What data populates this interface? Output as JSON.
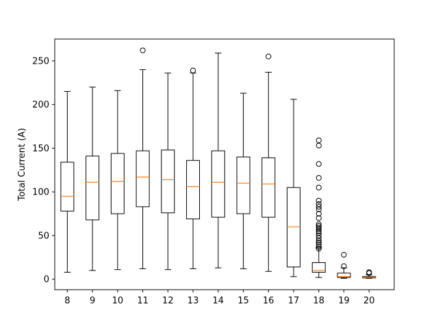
{
  "chart_data": {
    "type": "box",
    "title": "",
    "xlabel": "",
    "ylabel": "Total Current (A)",
    "ylim": [
      -12,
      275
    ],
    "yticks": [
      0,
      50,
      100,
      150,
      200,
      250
    ],
    "grid": false,
    "categories": [
      "8",
      "9",
      "10",
      "11",
      "12",
      "13",
      "14",
      "15",
      "16",
      "17",
      "18",
      "19",
      "20"
    ],
    "boxes": [
      {
        "label": "8",
        "whisker_low": 8,
        "q1": 78,
        "median": 95,
        "q3": 134,
        "whisker_high": 215,
        "outliers": []
      },
      {
        "label": "9",
        "whisker_low": 10,
        "q1": 68,
        "median": 111,
        "q3": 141,
        "whisker_high": 220,
        "outliers": []
      },
      {
        "label": "10",
        "whisker_low": 11,
        "q1": 75,
        "median": 112,
        "q3": 144,
        "whisker_high": 216,
        "outliers": []
      },
      {
        "label": "11",
        "whisker_low": 12,
        "q1": 83,
        "median": 117,
        "q3": 147,
        "whisker_high": 240,
        "outliers": [
          262
        ]
      },
      {
        "label": "12",
        "whisker_low": 11,
        "q1": 76,
        "median": 114,
        "q3": 148,
        "whisker_high": 236,
        "outliers": []
      },
      {
        "label": "13",
        "whisker_low": 12,
        "q1": 69,
        "median": 106,
        "q3": 136,
        "whisker_high": 236,
        "outliers": [
          239
        ]
      },
      {
        "label": "14",
        "whisker_low": 13,
        "q1": 71,
        "median": 111,
        "q3": 147,
        "whisker_high": 259,
        "outliers": []
      },
      {
        "label": "15",
        "whisker_low": 12,
        "q1": 75,
        "median": 110,
        "q3": 140,
        "whisker_high": 213,
        "outliers": []
      },
      {
        "label": "16",
        "whisker_low": 9,
        "q1": 71,
        "median": 109,
        "q3": 139,
        "whisker_high": 237,
        "outliers": [
          255
        ]
      },
      {
        "label": "17",
        "whisker_low": 3,
        "q1": 14,
        "median": 60,
        "q3": 105,
        "whisker_high": 206,
        "outliers": []
      },
      {
        "label": "18",
        "whisker_low": 2,
        "q1": 8,
        "median": 10,
        "q3": 19,
        "whisker_high": 36,
        "outliers": [
          35,
          37,
          40,
          42,
          44,
          47,
          50,
          53,
          55,
          57,
          59,
          61,
          63,
          70,
          75,
          80,
          83,
          86,
          90,
          105,
          116,
          132,
          153,
          159
        ]
      },
      {
        "label": "19",
        "whisker_low": 1,
        "q1": 2,
        "median": 3,
        "q3": 7,
        "whisker_high": 13,
        "outliers": [
          15,
          28
        ]
      },
      {
        "label": "20",
        "whisker_low": 1,
        "q1": 1.5,
        "median": 2,
        "q3": 3,
        "whisker_high": 5,
        "outliers": [
          7,
          8
        ]
      }
    ],
    "colors": {
      "box": "#000000",
      "median": "#ff7f0e",
      "outlier": "#000000"
    }
  }
}
